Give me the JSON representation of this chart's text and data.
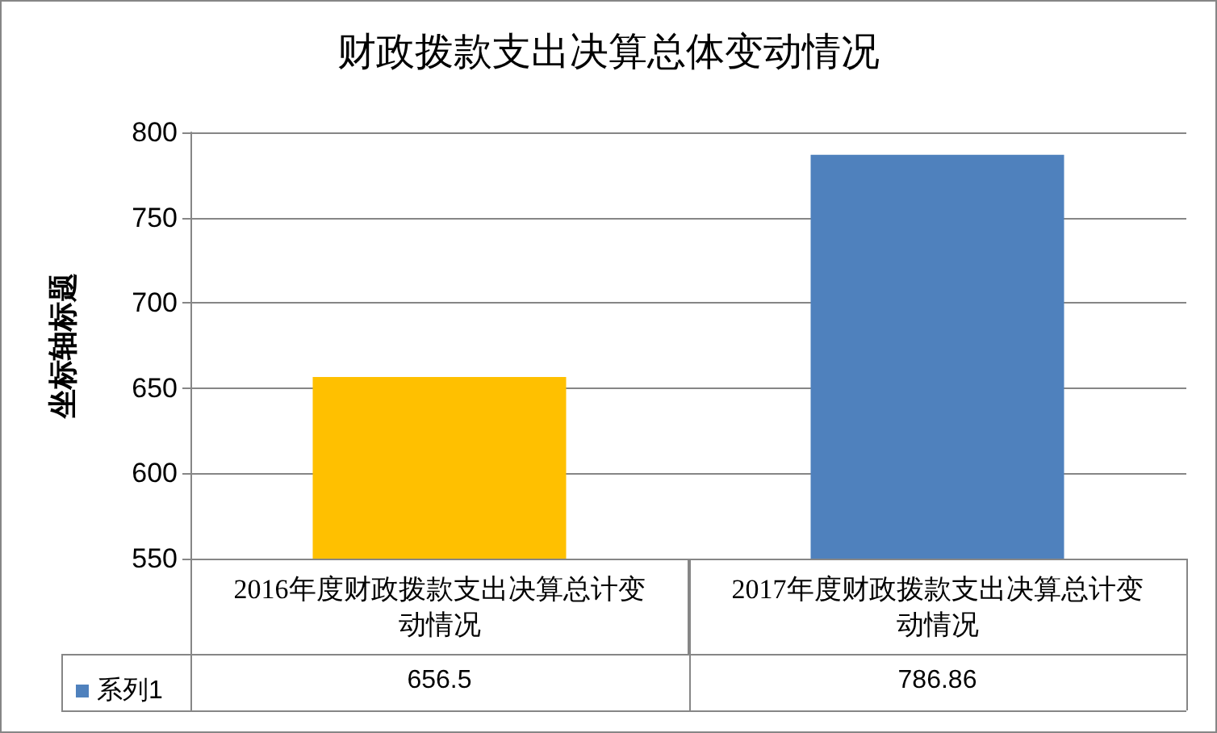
{
  "chart_data": {
    "type": "bar",
    "title": "财政拨款支出决算总体变动情况",
    "ylabel": "坐标轴标题",
    "categories": [
      "2016年度财政拨款支出决算总计变动情况",
      "2017年度财政拨款支出决算总计变动情况"
    ],
    "series": [
      {
        "name": "系列1",
        "color": "#4f81bd",
        "colors": [
          "#ffc000",
          "#4f81bd"
        ],
        "values": [
          656.5,
          786.86
        ]
      }
    ],
    "ylim": [
      550,
      800
    ],
    "yticks": [
      550,
      600,
      650,
      700,
      750,
      800
    ],
    "grid": "y",
    "legend": "bottom left",
    "data_labels": true
  }
}
